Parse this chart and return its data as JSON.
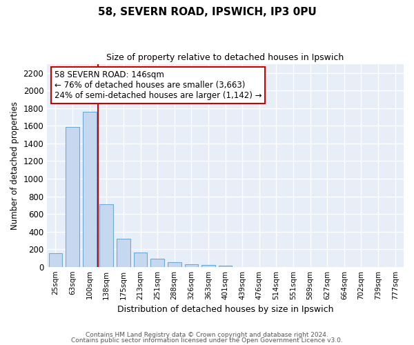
{
  "title1": "58, SEVERN ROAD, IPSWICH, IP3 0PU",
  "title2": "Size of property relative to detached houses in Ipswich",
  "xlabel": "Distribution of detached houses by size in Ipswich",
  "ylabel": "Number of detached properties",
  "categories": [
    "25sqm",
    "63sqm",
    "100sqm",
    "138sqm",
    "175sqm",
    "213sqm",
    "251sqm",
    "288sqm",
    "326sqm",
    "363sqm",
    "401sqm",
    "439sqm",
    "476sqm",
    "514sqm",
    "551sqm",
    "589sqm",
    "627sqm",
    "664sqm",
    "702sqm",
    "739sqm",
    "777sqm"
  ],
  "values": [
    155,
    1590,
    1760,
    710,
    315,
    160,
    90,
    55,
    30,
    20,
    15,
    0,
    0,
    0,
    0,
    0,
    0,
    0,
    0,
    0,
    0
  ],
  "bar_color": "#c5d8f0",
  "bar_edge_color": "#6aaad4",
  "vline_color": "#cc0000",
  "annotation_text": "58 SEVERN ROAD: 146sqm\n← 76% of detached houses are smaller (3,663)\n24% of semi-detached houses are larger (1,142) →",
  "annotation_box_color": "#ffffff",
  "annotation_box_edge_color": "#cc0000",
  "bg_color": "#e8eef8",
  "grid_color": "#d8e0f0",
  "footer1": "Contains HM Land Registry data © Crown copyright and database right 2024.",
  "footer2": "Contains public sector information licensed under the Open Government Licence v3.0.",
  "ylim": [
    0,
    2300
  ],
  "yticks": [
    0,
    200,
    400,
    600,
    800,
    1000,
    1200,
    1400,
    1600,
    1800,
    2000,
    2200
  ]
}
